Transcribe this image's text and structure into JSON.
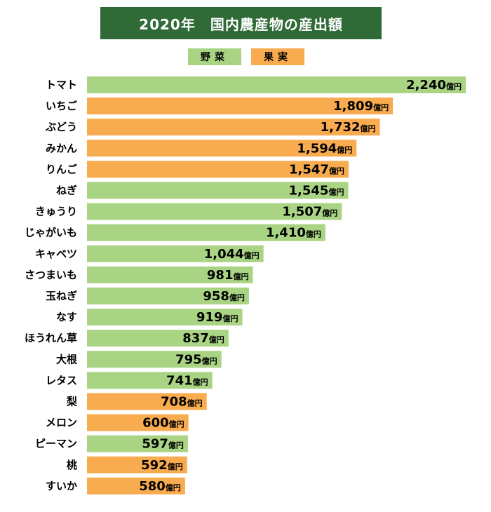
{
  "chart_data": {
    "type": "bar",
    "orientation": "horizontal",
    "title": "2020年　国内農産物の産出額",
    "unit": "億円",
    "legend": [
      {
        "key": "veg",
        "name": "野菜",
        "color": "#a8d484"
      },
      {
        "key": "fruit",
        "name": "果実",
        "color": "#f8ab4f"
      }
    ],
    "categories": [
      "トマト",
      "いちご",
      "ぶどう",
      "みかん",
      "りんご",
      "ねぎ",
      "きゅうり",
      "じゃがいも",
      "キャベツ",
      "さつまいも",
      "玉ねぎ",
      "なす",
      "ほうれん草",
      "大根",
      "レタス",
      "梨",
      "メロン",
      "ピーマン",
      "桃",
      "すいか"
    ],
    "values": [
      2240,
      1809,
      1732,
      1594,
      1547,
      1545,
      1507,
      1410,
      1044,
      981,
      958,
      919,
      837,
      795,
      741,
      708,
      600,
      597,
      592,
      580
    ],
    "value_labels": [
      "2,240",
      "1,809",
      "1,732",
      "1,594",
      "1,547",
      "1,545",
      "1,507",
      "1,410",
      "1,044",
      "981",
      "958",
      "919",
      "837",
      "795",
      "741",
      "708",
      "600",
      "597",
      "592",
      "580"
    ],
    "groups": [
      "veg",
      "fruit",
      "fruit",
      "fruit",
      "fruit",
      "veg",
      "veg",
      "veg",
      "veg",
      "veg",
      "veg",
      "veg",
      "veg",
      "veg",
      "veg",
      "fruit",
      "fruit",
      "veg",
      "fruit",
      "fruit"
    ],
    "xlim": [
      0,
      2240
    ]
  }
}
